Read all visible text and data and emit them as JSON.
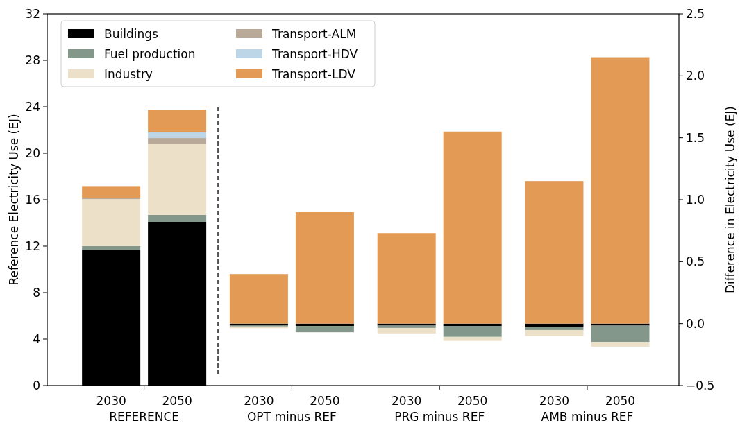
{
  "chart_data": {
    "type": "bar",
    "stacked": true,
    "categories": [
      "2030",
      "2050",
      "2030",
      "2050",
      "2030",
      "2050",
      "2030",
      "2050"
    ],
    "series": [
      {
        "name": "Buildings",
        "color": "#000000",
        "values": [
          11.7,
          14.09,
          null,
          null,
          null,
          null,
          null,
          null
        ]
      },
      {
        "name": "Fuel production",
        "color": "#83988a",
        "values": [
          0.3,
          0.6,
          null,
          null,
          null,
          null,
          null,
          null
        ]
      },
      {
        "name": "Industry",
        "color": "#ede0c8",
        "values": [
          4.05,
          6.09,
          null,
          null,
          null,
          null,
          null,
          null
        ]
      },
      {
        "name": "Transport-ALM",
        "color": "#b9a998",
        "values": [
          0.12,
          0.53,
          null,
          null,
          null,
          null,
          null,
          null
        ]
      },
      {
        "name": "Transport-HDV",
        "color": "#bcd6e8",
        "values": [
          null,
          0.48,
          null,
          null,
          null,
          null,
          null,
          null
        ]
      },
      {
        "name": "Transport-LDV",
        "color": "#e29a55",
        "values": [
          1.0,
          1.97,
          null,
          null,
          null,
          null,
          null,
          null
        ]
      },
      {
        "axis": "y2",
        "color": "#000000",
        "values": [
          null,
          null,
          -0.016,
          -0.019,
          -0.016,
          -0.021,
          -0.026,
          -0.016
        ]
      },
      {
        "axis": "y2",
        "color": "#83988a",
        "values": [
          null,
          null,
          -0.007,
          -0.051,
          -0.019,
          -0.086,
          -0.026,
          -0.133
        ]
      },
      {
        "axis": "y2",
        "color": "#ede0c8",
        "values": [
          null,
          null,
          -0.014,
          null,
          -0.044,
          -0.033,
          -0.049,
          -0.037
        ]
      },
      {
        "axis": "y2",
        "color": "#e29a55",
        "values": [
          null,
          null,
          0.4,
          0.9,
          0.73,
          1.55,
          1.15,
          2.15
        ]
      }
    ],
    "ylabel": "Reference Electricity Use (EJ)",
    "y2label": "Difference in Electricity Use (EJ)",
    "ylim": [
      0,
      32
    ],
    "yticks": [
      0,
      4,
      8,
      12,
      16,
      20,
      24,
      28,
      32
    ],
    "y2lim": [
      -0.5,
      2.5
    ],
    "y2ticks": [
      {
        "value": -0.5,
        "label": "−0.5"
      },
      {
        "value": 0,
        "label": "0.0"
      },
      {
        "value": 0.5,
        "label": "0.5"
      },
      {
        "value": 1,
        "label": "1.0"
      },
      {
        "value": 1.5,
        "label": "1.5"
      },
      {
        "value": 2,
        "label": "2.0"
      },
      {
        "value": 2.5,
        "label": "2.5"
      }
    ],
    "legend": "top left",
    "annotations": [
      "REFERENCE",
      "OPT minus REF",
      "PRG minus REF",
      "AMB minus REF"
    ]
  }
}
